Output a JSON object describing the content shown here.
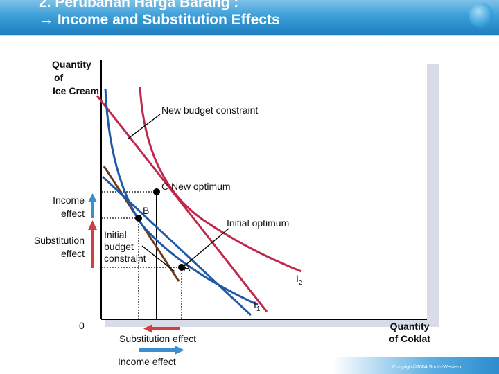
{
  "title": {
    "line1": "2. Perubahan Harga Barang :",
    "line2": "→ Income and Substitution Effects"
  },
  "axes": {
    "y_label_lines": [
      "Quantity",
      "of",
      "Ice Cream"
    ],
    "x_label_lines": [
      "Quantity",
      "of Coklat"
    ],
    "origin": "0"
  },
  "labels": {
    "new_budget_constraint": "New budget constraint",
    "new_optimum": "C  New optimum",
    "point_b": "B",
    "initial_optimum": "Initial optimum",
    "initial_budget_constraint_lines": [
      "Initial",
      "budget",
      "constraint"
    ],
    "point_a": "A",
    "i2_base": "I",
    "i2_sub": "2",
    "i1_base": "I",
    "i1_sub": "1",
    "income_effect_lines": [
      "Income",
      "effect"
    ],
    "substitution_effect_lines": [
      "Substitution",
      "effect"
    ],
    "legend_substitution": "Substitution effect",
    "legend_income": "Income effect"
  },
  "colors": {
    "budget_constraint": "#c0284a",
    "indifference_curve": "#1f5aa8",
    "brown_segment": "#6b3a1f",
    "income_arrow": "#3a8fd0",
    "substitution_arrow": "#d04040"
  },
  "copyright": "Copyright©2004  South-Western"
}
